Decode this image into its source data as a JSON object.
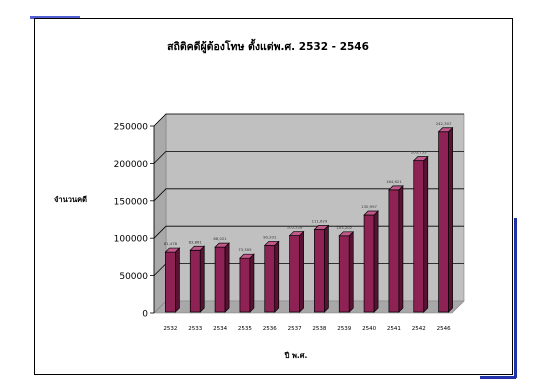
{
  "chart_data": {
    "type": "bar",
    "title": "สถิติคดีผู้ต้องโทษ ตั้งแต่พ.ศ. 2532 - 2546",
    "xlabel": "ปี พ.ศ.",
    "ylabel": "จำนวนคดี",
    "ylim": [
      0,
      250000
    ],
    "y_ticks": [
      "0",
      "50000",
      "100000",
      "150000",
      "200000",
      "250000"
    ],
    "grid": true,
    "categories": [
      "2532",
      "2533",
      "2534",
      "2535",
      "2536",
      "2537",
      "2538",
      "2539",
      "2540",
      "2541",
      "2542",
      "2546"
    ],
    "values": [
      81478,
      83861,
      88021,
      73305,
      90331,
      103528,
      111629,
      103202,
      130997,
      164621,
      203753,
      242307
    ],
    "data_labels": [
      "81,478",
      "83,861",
      "88,021",
      "73,305",
      "90,331",
      "103,528",
      "111,629",
      "103,202",
      "130,997",
      "164,621",
      "203,753",
      "242,307"
    ],
    "colors": {
      "bar_front": "#8e2254",
      "bar_side": "#5a1234",
      "bar_top": "#c0588a",
      "wall": "#c0c0c0",
      "floor": "#a8a8a8",
      "gridline": "#000000"
    }
  }
}
